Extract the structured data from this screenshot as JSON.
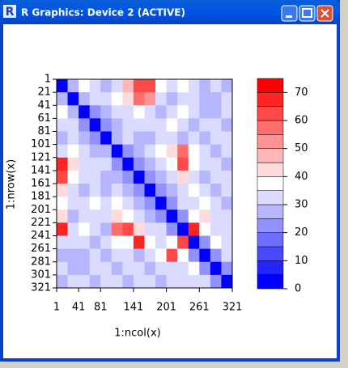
{
  "window": {
    "title": "R Graphics: Device 2 (ACTIVE)"
  },
  "chart_data": {
    "type": "heatmap",
    "xlabel": "1:ncol(x)",
    "ylabel": "1:nrow(x)",
    "xlim": [
      1,
      321
    ],
    "ylim": [
      1,
      321
    ],
    "y_inverted": true,
    "xticks": [
      1,
      41,
      81,
      141,
      201,
      261,
      321
    ],
    "yticks": [
      1,
      21,
      41,
      61,
      81,
      101,
      121,
      141,
      161,
      181,
      201,
      221,
      241,
      261,
      281,
      301,
      321
    ],
    "x_edges": [
      1,
      21,
      41,
      61,
      81,
      101,
      121,
      141,
      161,
      181,
      201,
      221,
      241,
      261,
      281,
      301,
      321
    ],
    "y_edges": [
      1,
      21,
      41,
      61,
      81,
      101,
      121,
      141,
      161,
      181,
      201,
      221,
      241,
      261,
      281,
      301,
      321
    ],
    "z": [
      [
        3,
        25,
        35,
        30,
        28,
        30,
        45,
        60,
        62,
        35,
        30,
        35,
        30,
        28,
        30,
        25
      ],
      [
        25,
        3,
        25,
        30,
        30,
        35,
        40,
        55,
        50,
        30,
        28,
        30,
        30,
        25,
        28,
        30
      ],
      [
        35,
        25,
        3,
        20,
        25,
        30,
        30,
        35,
        30,
        25,
        30,
        35,
        30,
        28,
        25,
        30
      ],
      [
        30,
        30,
        20,
        3,
        20,
        25,
        30,
        30,
        30,
        30,
        35,
        30,
        25,
        30,
        30,
        25
      ],
      [
        28,
        30,
        25,
        20,
        3,
        25,
        30,
        28,
        25,
        30,
        30,
        28,
        30,
        25,
        30,
        30
      ],
      [
        30,
        35,
        30,
        25,
        25,
        3,
        20,
        25,
        30,
        35,
        40,
        55,
        35,
        30,
        28,
        30
      ],
      [
        65,
        40,
        30,
        30,
        30,
        20,
        3,
        20,
        25,
        30,
        35,
        60,
        35,
        30,
        30,
        28
      ],
      [
        62,
        35,
        30,
        30,
        28,
        25,
        20,
        3,
        20,
        25,
        30,
        40,
        30,
        28,
        30,
        30
      ],
      [
        40,
        30,
        25,
        30,
        25,
        30,
        25,
        20,
        3,
        20,
        25,
        30,
        35,
        30,
        25,
        30
      ],
      [
        35,
        30,
        30,
        35,
        30,
        35,
        30,
        25,
        20,
        3,
        20,
        30,
        30,
        35,
        30,
        28
      ],
      [
        40,
        28,
        30,
        30,
        30,
        40,
        35,
        30,
        25,
        20,
        3,
        20,
        35,
        40,
        30,
        30
      ],
      [
        68,
        30,
        35,
        30,
        28,
        55,
        60,
        40,
        30,
        30,
        20,
        3,
        65,
        35,
        30,
        30
      ],
      [
        30,
        30,
        30,
        25,
        30,
        35,
        35,
        65,
        35,
        30,
        35,
        60,
        3,
        20,
        35,
        30
      ],
      [
        28,
        25,
        28,
        30,
        25,
        30,
        30,
        28,
        30,
        35,
        60,
        35,
        20,
        3,
        20,
        30
      ],
      [
        30,
        28,
        25,
        30,
        30,
        28,
        30,
        30,
        25,
        30,
        30,
        30,
        35,
        20,
        3,
        20
      ],
      [
        25,
        30,
        30,
        25,
        30,
        30,
        28,
        30,
        30,
        28,
        30,
        30,
        30,
        30,
        20,
        3
      ]
    ],
    "zlim": [
      0,
      75
    ],
    "zticks": [
      0,
      10,
      20,
      30,
      40,
      50,
      60,
      70
    ],
    "zbreaks": [
      0,
      5,
      10,
      15,
      20,
      25,
      30,
      35,
      40,
      45,
      50,
      55,
      60,
      65,
      70,
      75
    ],
    "colors": [
      "#0000FF",
      "#2424FF",
      "#4949FF",
      "#6D6DFF",
      "#9292FF",
      "#B6B6FF",
      "#DBDBFF",
      "#FFFFFF",
      "#FFDBDB",
      "#FFB6B6",
      "#FF9292",
      "#FF6D6D",
      "#FF4949",
      "#FF2424",
      "#FF0000"
    ]
  }
}
